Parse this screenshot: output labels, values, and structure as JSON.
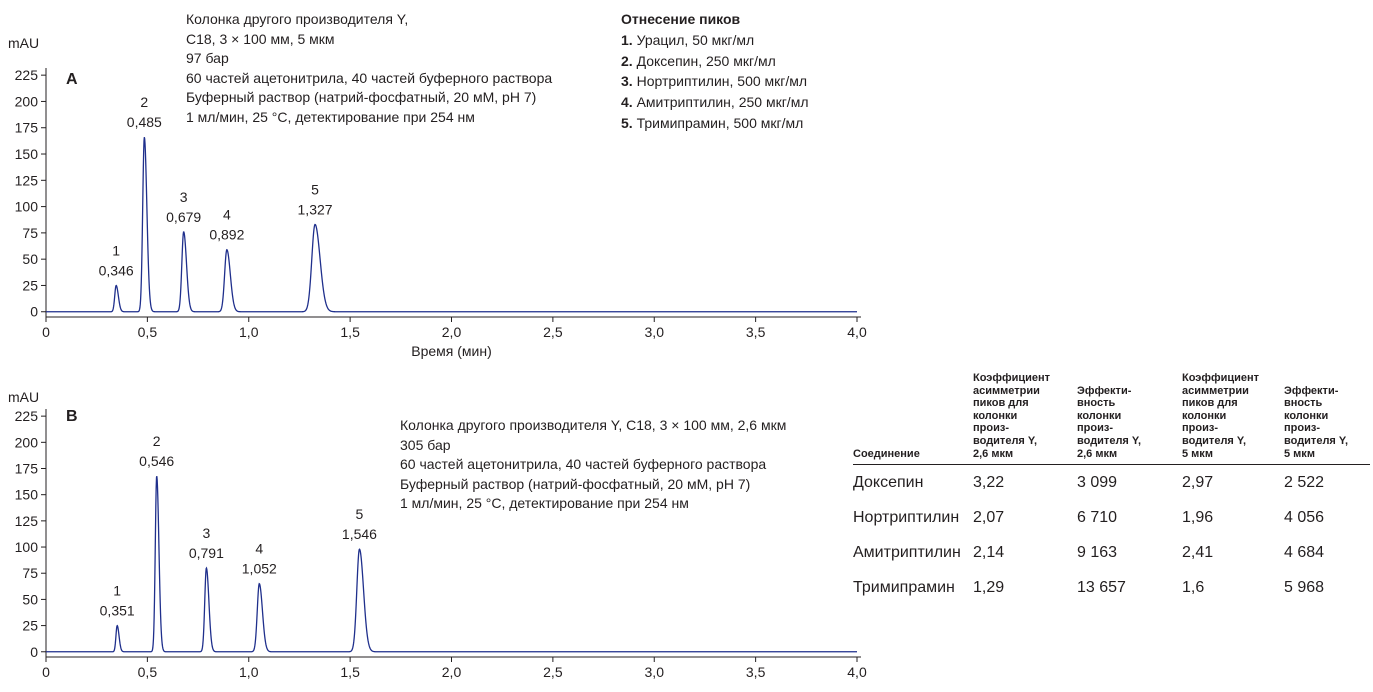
{
  "chart_data": [
    {
      "type": "line",
      "panel_label": "A",
      "ylabel": "mAU",
      "xlabel": "Время (мин)",
      "xlim": [
        0,
        4.0
      ],
      "ylim": [
        -5,
        228
      ],
      "x_ticks": [
        0,
        0.5,
        1.0,
        1.5,
        2.0,
        2.5,
        3.0,
        3.5,
        4.0
      ],
      "x_tick_labels": [
        "0",
        "0,5",
        "1,0",
        "1,5",
        "2,0",
        "2,5",
        "3,0",
        "3,5",
        "4,0"
      ],
      "y_ticks": [
        0,
        25,
        50,
        75,
        100,
        125,
        150,
        175,
        200,
        225
      ],
      "y_tick_labels": [
        "0",
        "25",
        "50",
        "75",
        "100",
        "125",
        "150",
        "175",
        "200",
        "225"
      ],
      "line_color": "#1f2f8c",
      "baseline": 0,
      "peaks": [
        {
          "label": "1",
          "rt": 0.346,
          "rt_label": "0,346",
          "height": 25,
          "width": 0.007
        },
        {
          "label": "2",
          "rt": 0.485,
          "rt_label": "0,485",
          "height": 166,
          "width": 0.008
        },
        {
          "label": "3",
          "rt": 0.679,
          "rt_label": "0,679",
          "height": 76,
          "width": 0.009
        },
        {
          "label": "4",
          "rt": 0.892,
          "rt_label": "0,892",
          "height": 59,
          "width": 0.011
        },
        {
          "label": "5",
          "rt": 1.327,
          "rt_label": "1,327",
          "height": 83,
          "width": 0.016
        }
      ],
      "conditions": [
        "Колонка другого производителя Y,",
        "C18, 3 × 100 мм, 5 мкм",
        "97 бар",
        "60 частей ацетонитрила, 40 частей буферного раствора",
        "Буферный раствор (натрий-фосфатный, 20 мМ, pH 7)",
        "1 мл/мин, 25 °C, детектирование при 254 нм"
      ]
    },
    {
      "type": "line",
      "panel_label": "B",
      "ylabel": "mAU",
      "xlabel": "",
      "xlim": [
        0,
        4.0
      ],
      "ylim": [
        -5,
        228
      ],
      "x_ticks": [
        0,
        0.5,
        1.0,
        1.5,
        2.0,
        2.5,
        3.0,
        3.5,
        4.0
      ],
      "x_tick_labels": [
        "0",
        "0,5",
        "1,0",
        "1,5",
        "2,0",
        "2,5",
        "3,0",
        "3,5",
        "4,0"
      ],
      "y_ticks": [
        0,
        25,
        50,
        75,
        100,
        125,
        150,
        175,
        200,
        225
      ],
      "y_tick_labels": [
        "0",
        "25",
        "50",
        "75",
        "100",
        "125",
        "150",
        "175",
        "200",
        "225"
      ],
      "line_color": "#1f2f8c",
      "baseline": 0,
      "peaks": [
        {
          "label": "1",
          "rt": 0.351,
          "rt_label": "0,351",
          "height": 25,
          "width": 0.006
        },
        {
          "label": "2",
          "rt": 0.546,
          "rt_label": "0,546",
          "height": 168,
          "width": 0.007
        },
        {
          "label": "3",
          "rt": 0.791,
          "rt_label": "0,791",
          "height": 80,
          "width": 0.008
        },
        {
          "label": "4",
          "rt": 1.052,
          "rt_label": "1,052",
          "height": 65,
          "width": 0.01
        },
        {
          "label": "5",
          "rt": 1.546,
          "rt_label": "1,546",
          "height": 98,
          "width": 0.013
        }
      ],
      "conditions": [
        "Колонка другого производителя Y, C18, 3 × 100 мм, 2,6 мкм",
        "305 бар",
        "60 частей ацетонитрила, 40 частей буферного раствора",
        "Буферный раствор (натрий-фосфатный, 20 мМ, pH 7)",
        "1 мл/мин, 25 °C, детектирование при 254 нм"
      ]
    }
  ],
  "peak_assignment": {
    "title": "Отнесение пиков",
    "items": [
      {
        "num": "1.",
        "name": "Урацил",
        "conc": ", 50 мкг/мл"
      },
      {
        "num": "2.",
        "name": "Доксепин",
        "conc": ", 250 мкг/мл"
      },
      {
        "num": "3.",
        "name": "Нортриптилин",
        "conc": ", 500 мкг/мл"
      },
      {
        "num": "4.",
        "name": "Амитриптилин",
        "conc": ", 250 мкг/мл"
      },
      {
        "num": "5.",
        "name": "Тримипрамин",
        "conc": ", 500 мкг/мл"
      }
    ]
  },
  "results_table": {
    "headers": [
      [
        "Соединение"
      ],
      [
        "Коэффициент",
        "асимметрии",
        "пиков для",
        "колонки",
        "произ-",
        "водителя Y,",
        "2,6 мкм"
      ],
      [
        "Эффекти-",
        "вность",
        "колонки",
        "произ-",
        "водителя Y,",
        "2,6 мкм"
      ],
      [
        "Коэффициент",
        "асимметрии",
        "пиков для",
        "колонки",
        "произ-",
        "водителя Y,",
        "5 мкм"
      ],
      [
        "Эффекти-",
        "вность",
        "колонки",
        "произ-",
        "водителя Y,",
        "5 мкм"
      ]
    ],
    "rows": [
      [
        "Доксепин",
        "3,22",
        "3 099",
        "2,97",
        "2 522"
      ],
      [
        "Нортриптилин",
        "2,07",
        "6 710",
        "1,96",
        "4 056"
      ],
      [
        "Амитриптилин",
        "2,14",
        "9 163",
        "2,41",
        "4 684"
      ],
      [
        "Тримипрамин",
        "1,29",
        "13 657",
        "1,6",
        "5 968"
      ]
    ]
  }
}
